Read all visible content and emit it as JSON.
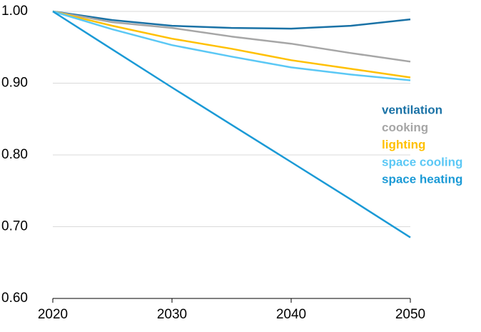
{
  "chart_data": {
    "type": "line",
    "x": [
      2020,
      2025,
      2030,
      2035,
      2040,
      2045,
      2050
    ],
    "series": [
      {
        "name": "ventilation",
        "color": "#1a72a6",
        "values": [
          1.0,
          0.988,
          0.98,
          0.977,
          0.976,
          0.98,
          0.989
        ]
      },
      {
        "name": "cooking",
        "color": "#a6a6a6",
        "values": [
          1.0,
          0.985,
          0.977,
          0.965,
          0.955,
          0.942,
          0.93
        ]
      },
      {
        "name": "lighting",
        "color": "#ffc000",
        "values": [
          1.0,
          0.98,
          0.962,
          0.948,
          0.932,
          0.92,
          0.908
        ]
      },
      {
        "name": "space cooling",
        "color": "#5bc8f5",
        "values": [
          1.0,
          0.975,
          0.953,
          0.937,
          0.922,
          0.912,
          0.904
        ]
      },
      {
        "name": "space heating",
        "color": "#1b9ad6",
        "values": [
          1.0,
          0.947,
          0.894,
          0.842,
          0.79,
          0.738,
          0.685
        ]
      }
    ],
    "xlim": [
      2020,
      2050
    ],
    "xticks": [
      2020,
      2030,
      2040,
      2050
    ],
    "ylim": [
      0.6,
      1.0
    ],
    "yticks": [
      {
        "value": 0.6,
        "label": "0.60"
      },
      {
        "value": 0.7,
        "label": "0.70"
      },
      {
        "value": 0.8,
        "label": "0.80"
      },
      {
        "value": 0.9,
        "label": "0.90"
      },
      {
        "value": 1.0,
        "label": "1.00"
      }
    ],
    "grid": true,
    "legend": "right"
  }
}
